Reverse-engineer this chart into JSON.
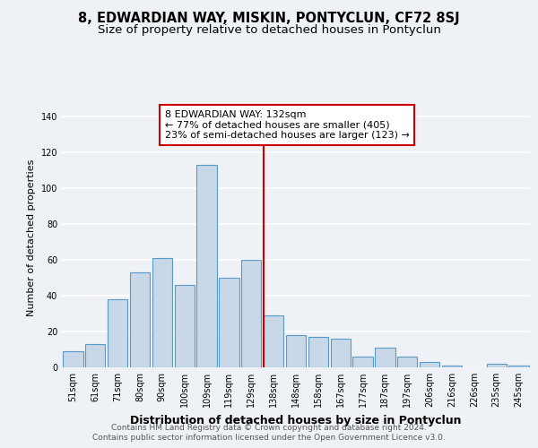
{
  "title": "8, EDWARDIAN WAY, MISKIN, PONTYCLUN, CF72 8SJ",
  "subtitle": "Size of property relative to detached houses in Pontyclun",
  "xlabel": "Distribution of detached houses by size in Pontyclun",
  "ylabel": "Number of detached properties",
  "bar_color": "#c8d8e8",
  "bar_edge_color": "#5a9ac8",
  "bar_edge_width": 0.8,
  "categories": [
    "51sqm",
    "61sqm",
    "71sqm",
    "80sqm",
    "90sqm",
    "100sqm",
    "109sqm",
    "119sqm",
    "129sqm",
    "138sqm",
    "148sqm",
    "158sqm",
    "167sqm",
    "177sqm",
    "187sqm",
    "197sqm",
    "206sqm",
    "216sqm",
    "226sqm",
    "235sqm",
    "245sqm"
  ],
  "values": [
    9,
    13,
    38,
    53,
    61,
    46,
    113,
    50,
    60,
    29,
    18,
    17,
    16,
    6,
    11,
    6,
    3,
    1,
    0,
    2,
    1
  ],
  "ylim": [
    0,
    145
  ],
  "yticks": [
    0,
    20,
    40,
    60,
    80,
    100,
    120,
    140
  ],
  "vline_x": 8.55,
  "vline_color": "#cc0000",
  "vline_linewidth": 1.5,
  "annotation_box_text": "8 EDWARDIAN WAY: 132sqm\n← 77% of detached houses are smaller (405)\n23% of semi-detached houses are larger (123) →",
  "annotation_box_color": "#ffffff",
  "annotation_box_edge_color": "#cc0000",
  "background_color": "#eef2f6",
  "grid_color": "#ffffff",
  "footer_line1": "Contains HM Land Registry data © Crown copyright and database right 2024.",
  "footer_line2": "Contains public sector information licensed under the Open Government Licence v3.0.",
  "title_fontsize": 10.5,
  "subtitle_fontsize": 9.5,
  "xlabel_fontsize": 9,
  "ylabel_fontsize": 8,
  "tick_fontsize": 7,
  "annotation_fontsize": 8,
  "footer_fontsize": 6.5
}
